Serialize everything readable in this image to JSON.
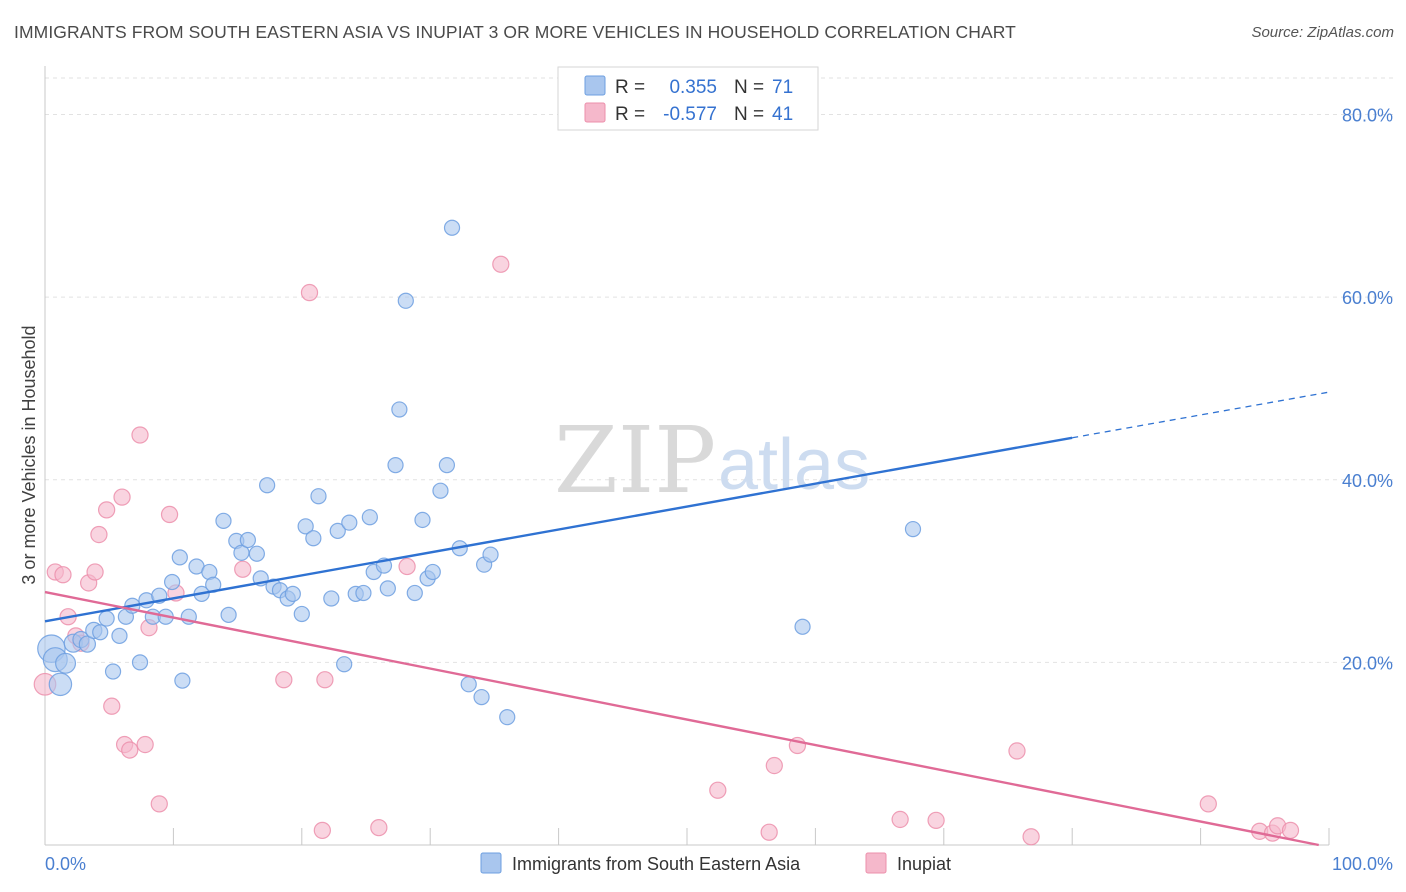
{
  "header": {
    "title": "IMMIGRANTS FROM SOUTH EASTERN ASIA VS INUPIAT 3 OR MORE VEHICLES IN HOUSEHOLD CORRELATION CHART",
    "source": "Source: ZipAtlas.com"
  },
  "watermark": {
    "zip": "ZIP",
    "atlas": "atlas"
  },
  "legend": {
    "r_label": "R =",
    "n_label": "N =",
    "items": [
      {
        "r": "0.355",
        "n": "71",
        "color": "#a9c6ee"
      },
      {
        "r": "-0.577",
        "n": "41",
        "color": "#f5b8cb"
      }
    ]
  },
  "chart_data": {
    "type": "scatter",
    "title": "IMMIGRANTS FROM SOUTH EASTERN ASIA VS INUPIAT 3 OR MORE VEHICLES IN HOUSEHOLD CORRELATION CHART",
    "xlabel": "",
    "ylabel": "3 or more Vehicles in Household",
    "xlim": [
      0,
      100
    ],
    "ylim": [
      0,
      84
    ],
    "x_tick_labels": [
      "0.0%",
      "100.0%"
    ],
    "y_ticks": [
      20,
      40,
      60,
      80
    ],
    "y_tick_labels": [
      "20.0%",
      "40.0%",
      "60.0%",
      "80.0%"
    ],
    "grid": true,
    "legend_position": "top-center",
    "series": [
      {
        "name": "Immigrants from South Eastern Asia",
        "color": "#6d9fe0",
        "fill": "#a9c6ee",
        "line_color": "#2f72d2",
        "trend": {
          "x0": 0,
          "y0": 24.5,
          "x1": 80,
          "y1": 44.6,
          "dashed_to_x": 100,
          "dashed_to_y": 49.6
        },
        "points": [
          [
            0.5,
            21.5,
            2.1
          ],
          [
            0.8,
            20.3,
            1.6
          ],
          [
            1.2,
            17.6,
            1.4
          ],
          [
            1.6,
            19.9,
            1.1
          ],
          [
            2.2,
            22.1,
            1.0
          ],
          [
            2.8,
            22.5,
            0.8
          ],
          [
            3.3,
            22.0,
            0.8
          ],
          [
            3.8,
            23.5,
            0.8
          ],
          [
            4.3,
            23.3,
            0.7
          ],
          [
            4.8,
            24.8,
            0.7
          ],
          [
            5.3,
            19.0,
            0.7
          ],
          [
            5.8,
            22.9,
            0.7
          ],
          [
            6.3,
            25.0,
            0.7
          ],
          [
            6.8,
            26.2,
            0.7
          ],
          [
            7.4,
            20.0,
            0.7
          ],
          [
            7.9,
            26.8,
            0.7
          ],
          [
            8.4,
            25.0,
            0.7
          ],
          [
            8.9,
            27.3,
            0.7
          ],
          [
            9.4,
            25.0,
            0.7
          ],
          [
            9.9,
            28.8,
            0.7
          ],
          [
            10.5,
            31.5,
            0.7
          ],
          [
            10.7,
            18.0,
            0.7
          ],
          [
            11.2,
            25.0,
            0.7
          ],
          [
            11.8,
            30.5,
            0.7
          ],
          [
            12.2,
            27.5,
            0.7
          ],
          [
            12.8,
            29.9,
            0.7
          ],
          [
            13.1,
            28.5,
            0.7
          ],
          [
            13.9,
            35.5,
            0.7
          ],
          [
            14.3,
            25.2,
            0.7
          ],
          [
            14.9,
            33.3,
            0.7
          ],
          [
            15.3,
            32.0,
            0.7
          ],
          [
            15.8,
            33.4,
            0.7
          ],
          [
            16.5,
            31.9,
            0.7
          ],
          [
            16.8,
            29.2,
            0.7
          ],
          [
            17.3,
            39.4,
            0.7
          ],
          [
            17.8,
            28.3,
            0.7
          ],
          [
            18.3,
            27.9,
            0.7
          ],
          [
            18.9,
            27.0,
            0.7
          ],
          [
            19.3,
            27.5,
            0.7
          ],
          [
            20.0,
            25.3,
            0.7
          ],
          [
            20.3,
            34.9,
            0.7
          ],
          [
            20.9,
            33.6,
            0.7
          ],
          [
            21.3,
            38.2,
            0.7
          ],
          [
            22.3,
            27.0,
            0.7
          ],
          [
            22.8,
            34.4,
            0.7
          ],
          [
            23.3,
            19.8,
            0.7
          ],
          [
            23.7,
            35.3,
            0.7
          ],
          [
            24.2,
            27.5,
            0.7
          ],
          [
            24.8,
            27.6,
            0.7
          ],
          [
            25.3,
            35.9,
            0.7
          ],
          [
            25.6,
            29.9,
            0.7
          ],
          [
            26.4,
            30.6,
            0.7
          ],
          [
            26.7,
            28.1,
            0.7
          ],
          [
            27.3,
            41.6,
            0.7
          ],
          [
            27.6,
            47.7,
            0.7
          ],
          [
            28.1,
            59.6,
            0.7
          ],
          [
            28.8,
            27.6,
            0.7
          ],
          [
            29.4,
            35.6,
            0.7
          ],
          [
            29.8,
            29.2,
            0.7
          ],
          [
            30.2,
            29.9,
            0.7
          ],
          [
            30.8,
            38.8,
            0.7
          ],
          [
            31.3,
            41.6,
            0.7
          ],
          [
            31.7,
            67.6,
            0.7
          ],
          [
            32.3,
            32.5,
            0.7
          ],
          [
            33.0,
            17.6,
            0.7
          ],
          [
            34.0,
            16.2,
            0.7
          ],
          [
            34.2,
            30.7,
            0.7
          ],
          [
            34.7,
            31.8,
            0.7
          ],
          [
            36.0,
            14.0,
            0.7
          ],
          [
            59.0,
            23.9,
            0.7
          ],
          [
            67.6,
            34.6,
            0.7
          ]
        ]
      },
      {
        "name": "Inupiat",
        "color": "#ec8fab",
        "fill": "#f5b8cb",
        "line_color": "#e06a96",
        "trend": {
          "x0": 0,
          "y0": 27.7,
          "x1": 99.2,
          "y1": 0
        },
        "points": [
          [
            0.0,
            17.6,
            1.3
          ],
          [
            0.8,
            29.9,
            0.8
          ],
          [
            1.4,
            29.6,
            0.8
          ],
          [
            1.8,
            25.0,
            0.8
          ],
          [
            2.4,
            22.9,
            0.8
          ],
          [
            2.8,
            22.1,
            0.8
          ],
          [
            3.4,
            28.7,
            0.8
          ],
          [
            3.9,
            29.9,
            0.8
          ],
          [
            4.2,
            34.0,
            0.8
          ],
          [
            4.8,
            36.7,
            0.8
          ],
          [
            5.2,
            15.2,
            0.8
          ],
          [
            6.0,
            38.1,
            0.8
          ],
          [
            6.2,
            11.0,
            0.8
          ],
          [
            6.6,
            10.4,
            0.8
          ],
          [
            7.4,
            44.9,
            0.8
          ],
          [
            7.8,
            11.0,
            0.8
          ],
          [
            8.1,
            23.8,
            0.8
          ],
          [
            8.9,
            4.5,
            0.8
          ],
          [
            9.7,
            36.2,
            0.8
          ],
          [
            10.2,
            27.6,
            0.8
          ],
          [
            15.4,
            30.2,
            0.8
          ],
          [
            18.6,
            18.1,
            0.8
          ],
          [
            20.6,
            60.5,
            0.8
          ],
          [
            21.6,
            1.6,
            0.8
          ],
          [
            21.8,
            18.1,
            0.8
          ],
          [
            26.0,
            1.9,
            0.8
          ],
          [
            28.2,
            30.5,
            0.8
          ],
          [
            35.5,
            63.6,
            0.8
          ],
          [
            52.4,
            6.0,
            0.8
          ],
          [
            56.4,
            1.4,
            0.8
          ],
          [
            56.8,
            8.7,
            0.8
          ],
          [
            58.6,
            10.9,
            0.8
          ],
          [
            66.6,
            2.8,
            0.8
          ],
          [
            69.4,
            2.7,
            0.8
          ],
          [
            75.7,
            10.3,
            0.8
          ],
          [
            76.8,
            0.9,
            0.8
          ],
          [
            90.6,
            4.5,
            0.8
          ],
          [
            94.6,
            1.5,
            0.8
          ],
          [
            95.6,
            1.3,
            0.8
          ],
          [
            96.0,
            2.1,
            0.8
          ],
          [
            97.0,
            1.6,
            0.8
          ]
        ]
      }
    ]
  }
}
